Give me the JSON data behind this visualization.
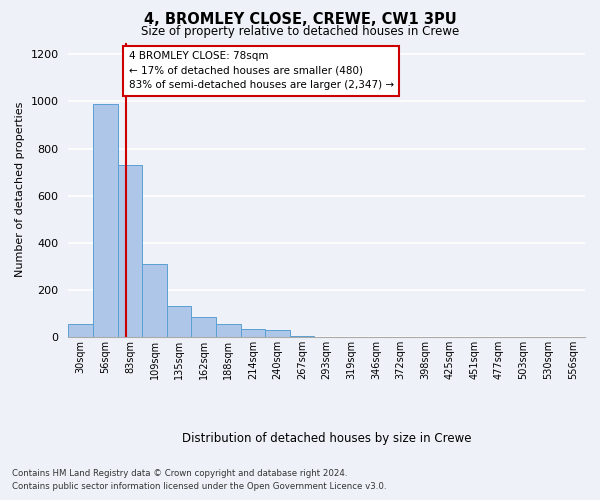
{
  "title1": "4, BROMLEY CLOSE, CREWE, CW1 3PU",
  "title2": "Size of property relative to detached houses in Crewe",
  "xlabel": "Distribution of detached houses by size in Crewe",
  "ylabel": "Number of detached properties",
  "bin_labels": [
    "30sqm",
    "56sqm",
    "83sqm",
    "109sqm",
    "135sqm",
    "162sqm",
    "188sqm",
    "214sqm",
    "240sqm",
    "267sqm",
    "293sqm",
    "319sqm",
    "346sqm",
    "372sqm",
    "398sqm",
    "425sqm",
    "451sqm",
    "477sqm",
    "503sqm",
    "530sqm",
    "556sqm"
  ],
  "bar_values": [
    55,
    990,
    730,
    310,
    130,
    85,
    55,
    35,
    30,
    5,
    0,
    0,
    0,
    0,
    0,
    0,
    0,
    0,
    0,
    0,
    0
  ],
  "bar_color": "#aec6e8",
  "bar_edge_color": "#5a9fd4",
  "property_line_bin": 1.85,
  "annotation_text": "4 BROMLEY CLOSE: 78sqm\n← 17% of detached houses are smaller (480)\n83% of semi-detached houses are larger (2,347) →",
  "annotation_box_color": "#ffffff",
  "annotation_box_edge": "#cc0000",
  "ylim": [
    0,
    1250
  ],
  "yticks": [
    0,
    200,
    400,
    600,
    800,
    1000,
    1200
  ],
  "footer1": "Contains HM Land Registry data © Crown copyright and database right 2024.",
  "footer2": "Contains public sector information licensed under the Open Government Licence v3.0.",
  "bg_color": "#eef2f8",
  "grid_color": "#ffffff"
}
